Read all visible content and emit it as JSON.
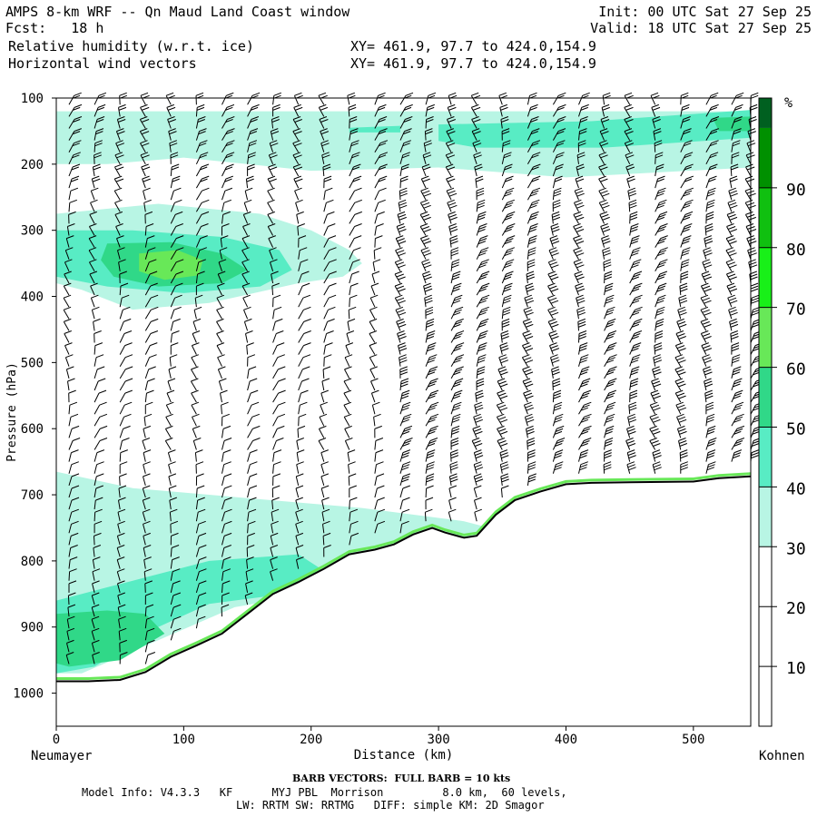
{
  "header": {
    "title": "AMPS 8-km WRF -- Qn Maud Land Coast window",
    "fcst": "Fcst:   18 h",
    "field1": "Relative humidity (w.r.t. ice)",
    "field2": "Horizontal wind vectors",
    "xy1": "XY= 461.9, 97.7 to 424.0,154.9",
    "xy2": "XY= 461.9, 97.7 to 424.0,154.9",
    "init": "Init: 00 UTC Sat 27 Sep 25",
    "valid": "Valid: 18 UTC Sat 27 Sep 25"
  },
  "footer": {
    "barb": "BARB VECTORS:  FULL BARB = 10 kts",
    "model1": "Model Info: V4.3.3   KF      MYJ PBL  Morrison         8.0 km,  60 levels,",
    "model2": "LW: RRTM SW: RRTMG   DIFF: simple KM: 2D Smagor"
  },
  "colors": {
    "c30": "#b8f5e4",
    "c40": "#58ecc4",
    "c50": "#30d888",
    "c60": "#68e858",
    "c70": "#18f018",
    "c80": "#10c010",
    "c90": "#009000",
    "c100": "#006020",
    "terrain": "#000000"
  },
  "chart_data": {
    "type": "cross-section",
    "xlabel": "Distance (km)",
    "ylabel": "Pressure (hPa)",
    "xlim": [
      0,
      545
    ],
    "ylim": [
      1050,
      100
    ],
    "xticks": [
      0,
      100,
      200,
      300,
      400,
      500
    ],
    "yticks": [
      100,
      200,
      300,
      400,
      500,
      600,
      700,
      800,
      900,
      1000
    ],
    "left_end_label": "Neumayer",
    "right_end_label": "Kohnen",
    "colorbar": {
      "unit": "%",
      "labels": [
        10,
        20,
        30,
        40,
        50,
        60,
        70,
        80,
        90
      ],
      "bins": [
        {
          "lo": 0,
          "hi": 30,
          "color": "#ffffff"
        },
        {
          "lo": 30,
          "hi": 40,
          "color": "#b8f5e4"
        },
        {
          "lo": 40,
          "hi": 50,
          "color": "#58ecc4"
        },
        {
          "lo": 50,
          "hi": 60,
          "color": "#30d888"
        },
        {
          "lo": 60,
          "hi": 70,
          "color": "#68e858"
        },
        {
          "lo": 70,
          "hi": 80,
          "color": "#18f018"
        },
        {
          "lo": 80,
          "hi": 90,
          "color": "#10c010"
        },
        {
          "lo": 90,
          "hi": 100,
          "color": "#009000"
        },
        {
          "lo": 100,
          "hi": 105,
          "color": "#006020"
        }
      ]
    },
    "terrain_surface_hPa": [
      [
        0,
        982
      ],
      [
        25,
        982
      ],
      [
        50,
        980
      ],
      [
        70,
        968
      ],
      [
        90,
        945
      ],
      [
        110,
        928
      ],
      [
        130,
        910
      ],
      [
        150,
        880
      ],
      [
        170,
        850
      ],
      [
        190,
        832
      ],
      [
        210,
        812
      ],
      [
        230,
        790
      ],
      [
        250,
        783
      ],
      [
        265,
        775
      ],
      [
        280,
        760
      ],
      [
        295,
        750
      ],
      [
        305,
        757
      ],
      [
        320,
        765
      ],
      [
        330,
        762
      ],
      [
        345,
        730
      ],
      [
        360,
        708
      ],
      [
        380,
        695
      ],
      [
        400,
        684
      ],
      [
        420,
        682
      ],
      [
        450,
        681
      ],
      [
        500,
        680
      ],
      [
        520,
        675
      ],
      [
        545,
        672
      ]
    ],
    "rh_regions": [
      {
        "level": 30,
        "points": [
          [
            0,
            120
          ],
          [
            545,
            120
          ],
          [
            545,
            205
          ],
          [
            400,
            220
          ],
          [
            300,
            205
          ],
          [
            200,
            210
          ],
          [
            150,
            200
          ],
          [
            100,
            190
          ],
          [
            40,
            200
          ],
          [
            0,
            200
          ]
        ]
      },
      {
        "level": 40,
        "points": [
          [
            300,
            140
          ],
          [
            420,
            135
          ],
          [
            545,
            118
          ],
          [
            545,
            160
          ],
          [
            430,
            175
          ],
          [
            330,
            175
          ],
          [
            300,
            165
          ]
        ]
      },
      {
        "level": 50,
        "points": [
          [
            545,
            128
          ],
          [
            545,
            150
          ],
          [
            520,
            150
          ],
          [
            515,
            130
          ]
        ]
      },
      {
        "level": 40,
        "points": [
          [
            230,
            145
          ],
          [
            270,
            142
          ],
          [
            270,
            152
          ],
          [
            230,
            152
          ]
        ]
      },
      {
        "level": 30,
        "points": [
          [
            0,
            275
          ],
          [
            80,
            260
          ],
          [
            160,
            275
          ],
          [
            200,
            300
          ],
          [
            230,
            330
          ],
          [
            240,
            350
          ],
          [
            225,
            370
          ],
          [
            190,
            380
          ],
          [
            120,
            410
          ],
          [
            60,
            420
          ],
          [
            20,
            390
          ],
          [
            0,
            380
          ]
        ]
      },
      {
        "level": 40,
        "points": [
          [
            0,
            300
          ],
          [
            60,
            300
          ],
          [
            130,
            310
          ],
          [
            175,
            330
          ],
          [
            185,
            360
          ],
          [
            160,
            385
          ],
          [
            100,
            395
          ],
          [
            40,
            385
          ],
          [
            0,
            370
          ]
        ]
      },
      {
        "level": 50,
        "points": [
          [
            40,
            320
          ],
          [
            90,
            318
          ],
          [
            130,
            335
          ],
          [
            150,
            360
          ],
          [
            130,
            380
          ],
          [
            80,
            385
          ],
          [
            45,
            370
          ],
          [
            35,
            345
          ]
        ]
      },
      {
        "level": 60,
        "points": [
          [
            65,
            335
          ],
          [
            95,
            330
          ],
          [
            115,
            345
          ],
          [
            112,
            368
          ],
          [
            85,
            375
          ],
          [
            65,
            362
          ]
        ]
      },
      {
        "level": 30,
        "points": [
          [
            0,
            665
          ],
          [
            60,
            690
          ],
          [
            150,
            705
          ],
          [
            240,
            720
          ],
          [
            320,
            740
          ],
          [
            360,
            760
          ],
          [
            330,
            790
          ],
          [
            260,
            810
          ],
          [
            200,
            850
          ],
          [
            140,
            870
          ],
          [
            80,
            920
          ],
          [
            20,
            970
          ],
          [
            0,
            970
          ]
        ]
      },
      {
        "level": 40,
        "points": [
          [
            0,
            860
          ],
          [
            60,
            830
          ],
          [
            120,
            800
          ],
          [
            190,
            790
          ],
          [
            210,
            815
          ],
          [
            180,
            850
          ],
          [
            120,
            865
          ],
          [
            80,
            900
          ],
          [
            30,
            960
          ],
          [
            0,
            970
          ]
        ]
      },
      {
        "level": 50,
        "points": [
          [
            0,
            880
          ],
          [
            40,
            875
          ],
          [
            70,
            880
          ],
          [
            85,
            910
          ],
          [
            50,
            950
          ],
          [
            10,
            960
          ],
          [
            0,
            955
          ]
        ]
      }
    ],
    "wind_barbs": {
      "columns_km": [
        10,
        30,
        50,
        70,
        90,
        110,
        130,
        150,
        170,
        190,
        210,
        230,
        250,
        270,
        290,
        310,
        330,
        350,
        370,
        390,
        410,
        430,
        450,
        470,
        490,
        510,
        530,
        545
      ],
      "direction_note": "barbs point upward from each station column; barb count grows toward Kohnen at mid levels"
    }
  }
}
